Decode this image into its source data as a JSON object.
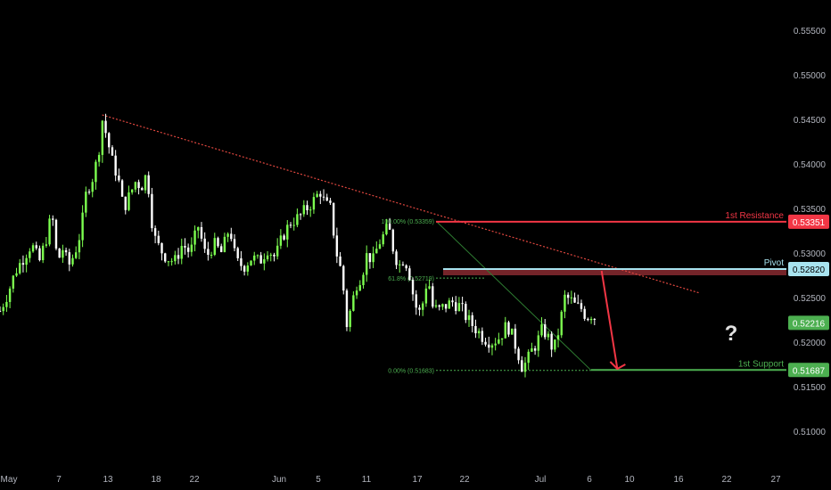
{
  "chart_data": {
    "type": "candlestick",
    "y_axis": {
      "range": [
        0.506,
        0.558
      ],
      "ticks": [
        "0.55500",
        "0.55000",
        "0.54500",
        "0.54000",
        "0.53500",
        "0.53000",
        "0.52500",
        "0.52000",
        "0.51500",
        "0.51000"
      ],
      "tick_values": [
        0.555,
        0.55,
        0.545,
        0.54,
        0.535,
        0.53,
        0.525,
        0.52,
        0.515,
        0.51
      ]
    },
    "x_axis": {
      "ticks": [
        "May",
        "7",
        "13",
        "18",
        "22",
        "Jun",
        "5",
        "11",
        "17",
        "22",
        "Jul",
        "6",
        "10",
        "16",
        "22",
        "27"
      ]
    },
    "levels": [
      {
        "name": "1st Resistance",
        "label": "1st Resistance",
        "price": 0.53351,
        "price_label": "0.53351",
        "color": "#f23645"
      },
      {
        "name": "Pivot",
        "label": "Pivot",
        "price": 0.5282,
        "price_label": "0.52820",
        "color": "#a8e3ef"
      },
      {
        "name": "1st Support",
        "label": "1st Support",
        "price": 0.51687,
        "price_label": "0.51687",
        "color": "#4caf50"
      }
    ],
    "current_price": {
      "value": 0.52216,
      "label": "0.52216",
      "color": "#4caf50"
    },
    "fibonacci": [
      {
        "label": "100.00% (0.53359)",
        "price": 0.53359
      },
      {
        "label": "61.8% (0.52719)",
        "price": 0.52719
      },
      {
        "label": "0.00% (0.51683)",
        "price": 0.51683
      }
    ],
    "annotations": {
      "question": "?"
    },
    "trendline": {
      "from": [
        0.13,
        0.5455
      ],
      "to": [
        0.89,
        0.5255
      ]
    },
    "price_path": [
      [
        0.0,
        0.5235
      ],
      [
        0.01,
        0.5255
      ],
      [
        0.02,
        0.528
      ],
      [
        0.03,
        0.5295
      ],
      [
        0.04,
        0.531
      ],
      [
        0.05,
        0.529
      ],
      [
        0.06,
        0.532
      ],
      [
        0.066,
        0.5345
      ],
      [
        0.073,
        0.529
      ],
      [
        0.08,
        0.5305
      ],
      [
        0.087,
        0.5285
      ],
      [
        0.095,
        0.53
      ],
      [
        0.103,
        0.5325
      ],
      [
        0.11,
        0.537
      ],
      [
        0.118,
        0.5385
      ],
      [
        0.125,
        0.541
      ],
      [
        0.13,
        0.545
      ],
      [
        0.136,
        0.543
      ],
      [
        0.142,
        0.5405
      ],
      [
        0.15,
        0.5385
      ],
      [
        0.157,
        0.535
      ],
      [
        0.165,
        0.5365
      ],
      [
        0.172,
        0.538
      ],
      [
        0.18,
        0.5375
      ],
      [
        0.187,
        0.539
      ],
      [
        0.195,
        0.532
      ],
      [
        0.203,
        0.5305
      ],
      [
        0.212,
        0.5295
      ],
      [
        0.222,
        0.529
      ],
      [
        0.232,
        0.531
      ],
      [
        0.242,
        0.53
      ],
      [
        0.252,
        0.533
      ],
      [
        0.262,
        0.5295
      ],
      [
        0.272,
        0.531
      ],
      [
        0.282,
        0.53
      ],
      [
        0.292,
        0.533
      ],
      [
        0.3,
        0.529
      ],
      [
        0.31,
        0.5285
      ],
      [
        0.32,
        0.5295
      ],
      [
        0.33,
        0.529
      ],
      [
        0.34,
        0.5305
      ],
      [
        0.35,
        0.5295
      ],
      [
        0.36,
        0.532
      ],
      [
        0.37,
        0.5335
      ],
      [
        0.38,
        0.534
      ],
      [
        0.39,
        0.535
      ],
      [
        0.4,
        0.536
      ],
      [
        0.407,
        0.537
      ],
      [
        0.413,
        0.5355
      ],
      [
        0.42,
        0.535
      ],
      [
        0.428,
        0.53
      ],
      [
        0.435,
        0.5275
      ],
      [
        0.441,
        0.522
      ],
      [
        0.447,
        0.524
      ],
      [
        0.453,
        0.5265
      ],
      [
        0.46,
        0.5275
      ],
      [
        0.467,
        0.53
      ],
      [
        0.474,
        0.529
      ],
      [
        0.481,
        0.531
      ],
      [
        0.488,
        0.532
      ],
      [
        0.494,
        0.533
      ],
      [
        0.5,
        0.5305
      ],
      [
        0.507,
        0.5285
      ],
      [
        0.514,
        0.5295
      ],
      [
        0.52,
        0.528
      ],
      [
        0.526,
        0.525
      ],
      [
        0.532,
        0.523
      ],
      [
        0.538,
        0.5245
      ],
      [
        0.544,
        0.5275
      ],
      [
        0.55,
        0.524
      ],
      [
        0.557,
        0.5235
      ],
      [
        0.565,
        0.524
      ],
      [
        0.575,
        0.5245
      ],
      [
        0.585,
        0.524
      ],
      [
        0.595,
        0.5225
      ],
      [
        0.605,
        0.5215
      ],
      [
        0.615,
        0.5205
      ],
      [
        0.625,
        0.52
      ],
      [
        0.635,
        0.5205
      ],
      [
        0.645,
        0.522
      ],
      [
        0.652,
        0.5205
      ],
      [
        0.658,
        0.519
      ],
      [
        0.664,
        0.5172
      ],
      [
        0.67,
        0.5178
      ],
      [
        0.676,
        0.519
      ],
      [
        0.683,
        0.52
      ],
      [
        0.69,
        0.5215
      ],
      [
        0.697,
        0.5205
      ],
      [
        0.704,
        0.519
      ],
      [
        0.711,
        0.5215
      ],
      [
        0.718,
        0.525
      ],
      [
        0.725,
        0.5248
      ],
      [
        0.732,
        0.524
      ],
      [
        0.739,
        0.5238
      ],
      [
        0.746,
        0.5228
      ],
      [
        0.753,
        0.5232
      ],
      [
        0.76,
        0.5222
      ]
    ],
    "projection": {
      "from": [
        0.765,
        0.528
      ],
      "to": [
        0.785,
        0.517
      ],
      "color": "#f23645"
    }
  }
}
